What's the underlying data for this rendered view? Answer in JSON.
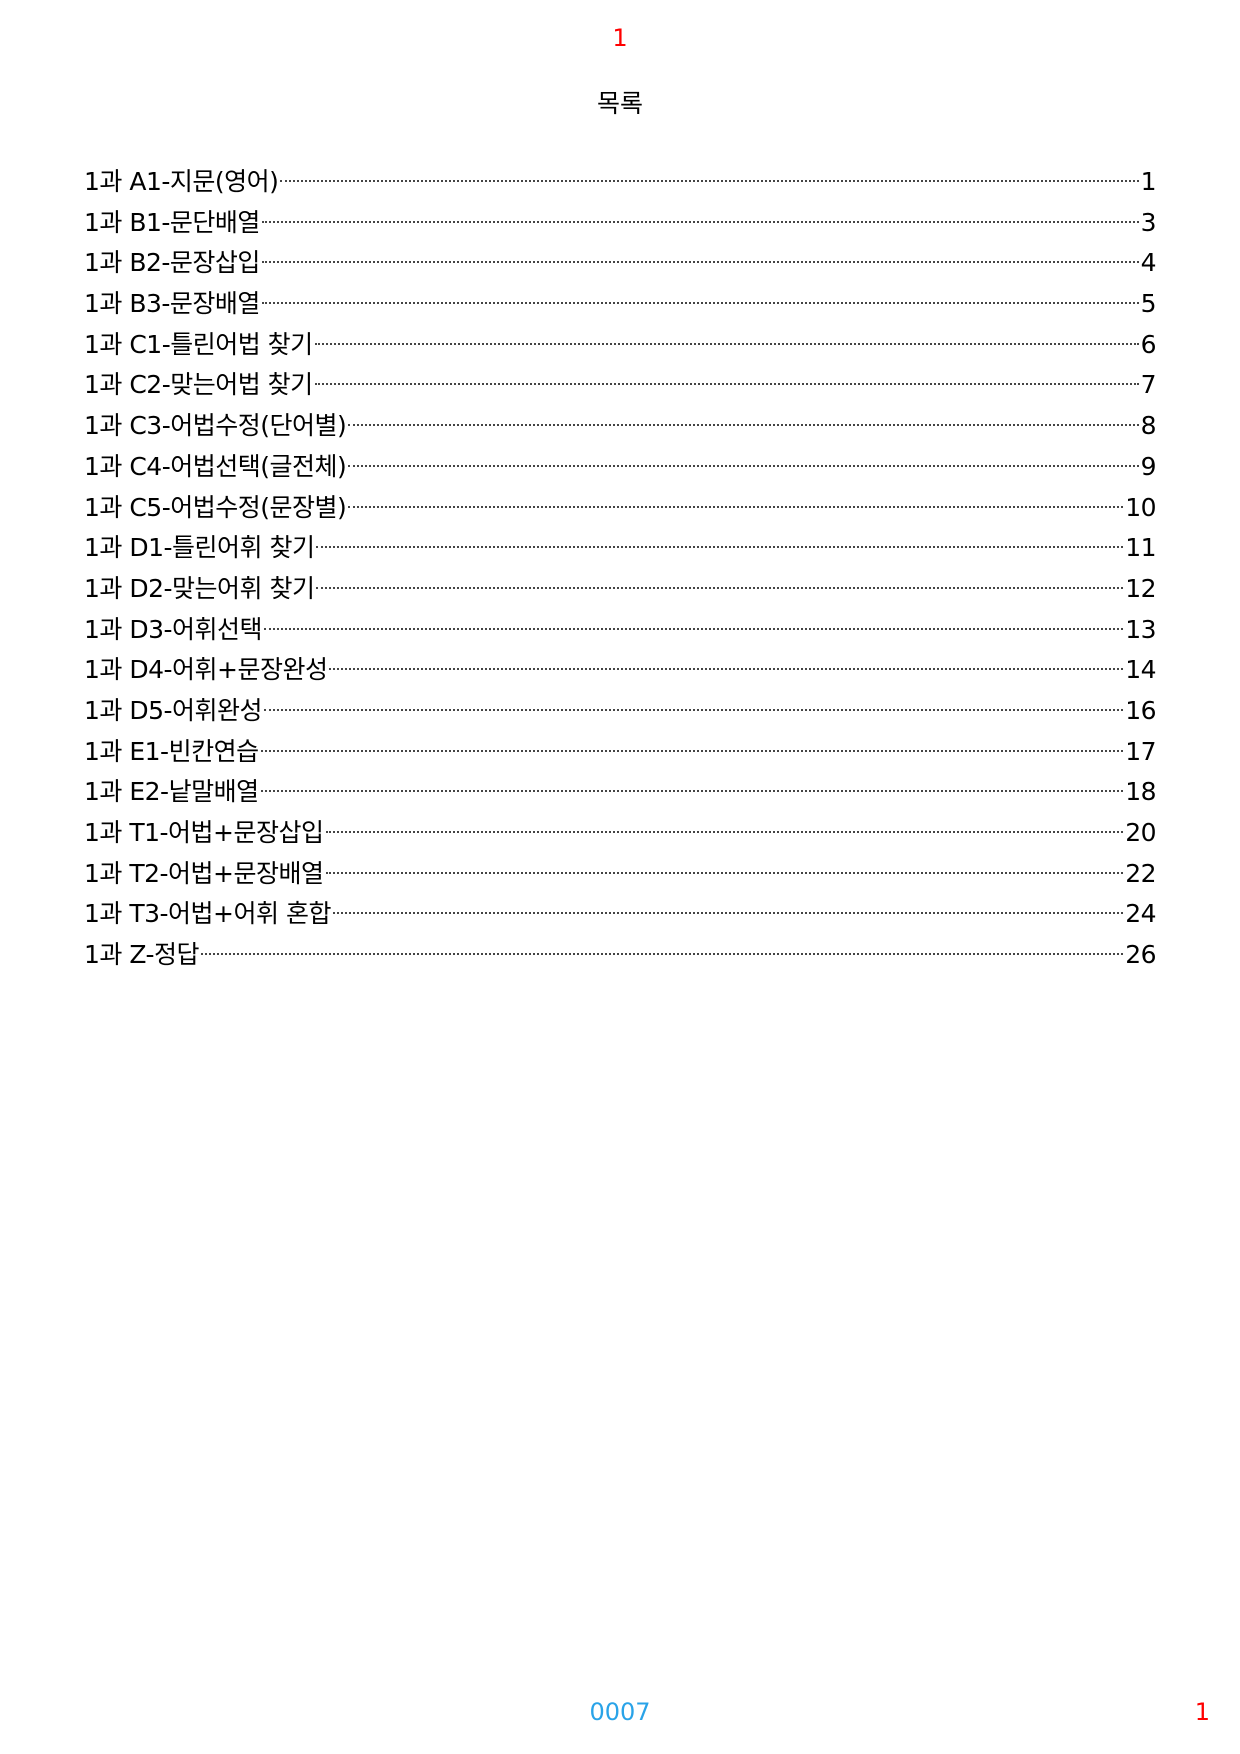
{
  "header": {
    "page_marker": "1",
    "title": "목록"
  },
  "toc": [
    {
      "label": "1과 A1-지문(영어)",
      "page": "1"
    },
    {
      "label": "1과 B1-문단배열",
      "page": "3"
    },
    {
      "label": "1과 B2-문장삽입",
      "page": "4"
    },
    {
      "label": "1과 B3-문장배열",
      "page": "5"
    },
    {
      "label": "1과 C1-틀린어법 찾기",
      "page": "6"
    },
    {
      "label": "1과 C2-맞는어법 찾기",
      "page": "7"
    },
    {
      "label": "1과 C3-어법수정(단어별)",
      "page": "8"
    },
    {
      "label": "1과 C4-어법선택(글전체)",
      "page": "9"
    },
    {
      "label": "1과 C5-어법수정(문장별)",
      "page": "10"
    },
    {
      "label": "1과 D1-틀린어휘 찾기",
      "page": "11"
    },
    {
      "label": "1과 D2-맞는어휘 찾기",
      "page": "12"
    },
    {
      "label": "1과 D3-어휘선택",
      "page": "13"
    },
    {
      "label": "1과 D4-어휘+문장완성",
      "page": "14"
    },
    {
      "label": "1과 D5-어휘완성",
      "page": "16"
    },
    {
      "label": "1과 E1-빈칸연습",
      "page": "17"
    },
    {
      "label": "1과 E2-낱말배열",
      "page": "18"
    },
    {
      "label": "1과 T1-어법+문장삽입",
      "page": "20"
    },
    {
      "label": "1과 T2-어법+문장배열",
      "page": "22"
    },
    {
      "label": "1과 T3-어법+어휘 혼합",
      "page": "24"
    },
    {
      "label": "1과 Z-정답",
      "page": "26"
    }
  ],
  "footer": {
    "code": "0007",
    "page_number": "1"
  },
  "colors": {
    "page_marker": "#ff0000",
    "footer_code": "#29a3e8"
  }
}
